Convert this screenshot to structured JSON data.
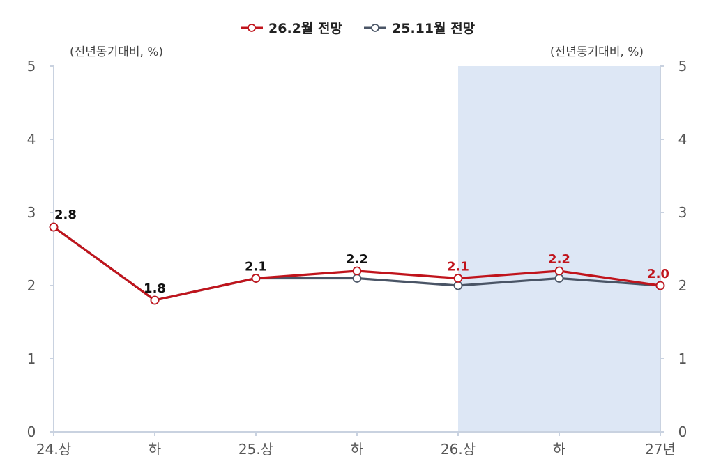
{
  "chart_data": {
    "type": "line",
    "categories": [
      "24.상",
      "하",
      "25.상",
      "하",
      "26.상",
      "하",
      "27년"
    ],
    "series": [
      {
        "name": "26.2월 전망",
        "color": "#c0141c",
        "values": [
          2.8,
          1.8,
          2.1,
          2.2,
          2.1,
          2.2,
          2.0
        ]
      },
      {
        "name": "25.11월 전망",
        "color": "#4a5566",
        "values": [
          2.8,
          1.8,
          2.1,
          2.1,
          2.0,
          2.1,
          2.0
        ]
      }
    ],
    "data_labels": [
      {
        "text": "2.8",
        "color": "#111111"
      },
      {
        "text": "1.8",
        "color": "#111111"
      },
      {
        "text": "2.1",
        "color": "#111111"
      },
      {
        "text": "2.2",
        "color": "#111111"
      },
      {
        "text": "2.1",
        "color": "#c0141c"
      },
      {
        "text": "2.2",
        "color": "#c0141c"
      },
      {
        "text": "2.0",
        "color": "#c0141c"
      }
    ],
    "y_ticks": [
      "0",
      "1",
      "2",
      "3",
      "4",
      "5"
    ],
    "ylim": [
      0,
      5
    ],
    "unit_left": "(전년동기대비, %)",
    "unit_right": "(전년동기대비, %)",
    "forecast_shading": {
      "from_index": 4,
      "to_index": 6,
      "color": "#dde7f5"
    },
    "legend_position": "top-center",
    "grid": false
  }
}
